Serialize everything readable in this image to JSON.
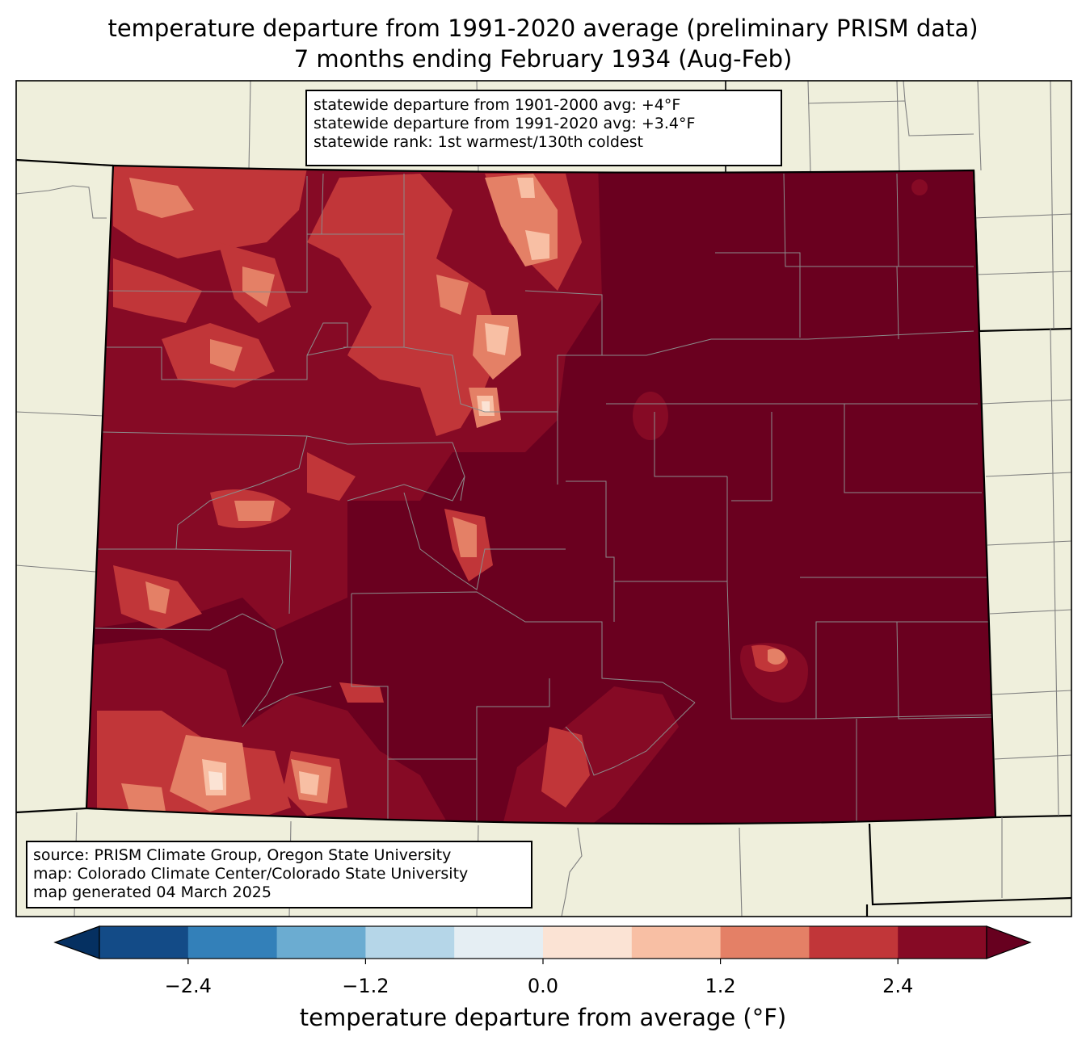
{
  "header": {
    "title_line1": "temperature departure from 1991-2020 average (preliminary PRISM data)",
    "title_line2": "7 months ending February 1934 (Aug-Feb)"
  },
  "stats_box": {
    "line1": "statewide departure from 1901-2000 avg: +4°F",
    "line2": "statewide departure from 1991-2020 avg: +3.4°F",
    "line3": "statewide rank: 1st warmest/130th coldest"
  },
  "credits_box": {
    "line1": "source: PRISM Climate Group, Oregon State University",
    "line2": "map: Colorado Climate Center/Colorado State University",
    "line3": "map generated 04 March 2025"
  },
  "colorbar": {
    "label": "temperature departure from average (°F)",
    "ticks": [
      {
        "value": -2.4,
        "label": "−2.4"
      },
      {
        "value": -1.2,
        "label": "−1.2"
      },
      {
        "value": 0.0,
        "label": "0.0"
      },
      {
        "value": 1.2,
        "label": "1.2"
      },
      {
        "value": 2.4,
        "label": "2.4"
      }
    ],
    "range": [
      -3.0,
      3.0
    ],
    "bin_width": 0.6,
    "under_color": "#053061",
    "over_color": "#67001f",
    "bin_colors": [
      "#134b87",
      "#3380b9",
      "#6bacd1",
      "#b5d6e8",
      "#e5eef3",
      "#fbe3d4",
      "#f8bfa4",
      "#e48066",
      "#c13639",
      "#860a25"
    ]
  },
  "map": {
    "land_color": "#efefdc",
    "dominant_color": "#6a001f",
    "region": "Colorado"
  }
}
